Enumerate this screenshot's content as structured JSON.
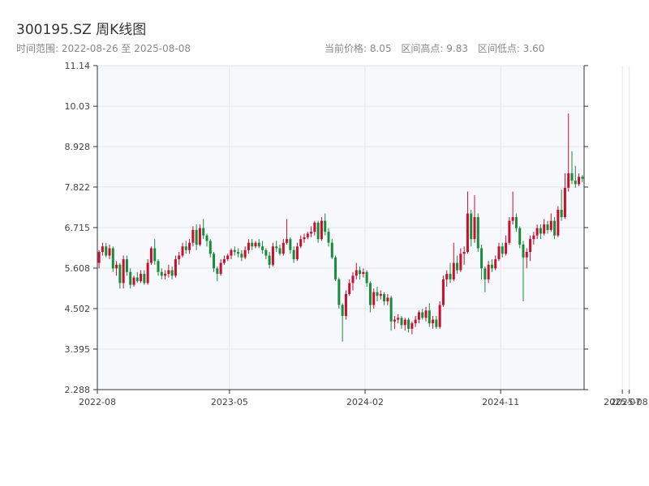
{
  "header": {
    "title": "300195.SZ 周K线图",
    "range_text": "时间范围: 2022-08-26 至 2025-08-08",
    "current_price_text": "当前价格: 8.05",
    "high_text": "区间高点: 9.83",
    "low_text": "区间低点: 3.60"
  },
  "colors": {
    "up": "#c8102e",
    "down": "#1a8a3c",
    "plot_bg": "#f6f8fb",
    "grid": "#e3e6ea",
    "axis": "#333333"
  },
  "chart_data": {
    "type": "candlestick",
    "title": "300195.SZ 周K线图",
    "date_range": [
      "2022-08-26",
      "2025-08-08"
    ],
    "ylim": [
      2.288,
      11.14
    ],
    "y_ticks": [
      "2.288",
      "3.395",
      "4.502",
      "5.608",
      "6.715",
      "7.822",
      "8.928",
      "10.03",
      "11.14"
    ],
    "y_tick_values": [
      2.288,
      3.395,
      4.502,
      5.608,
      6.715,
      7.822,
      8.928,
      10.03,
      11.14
    ],
    "x_ticks": [
      "2022-08",
      "2023-05",
      "2024-02",
      "2024-11",
      "2025-07",
      "2025-08"
    ],
    "x_tick_weeks": [
      0,
      38,
      77,
      116,
      151,
      153
    ],
    "grid": true,
    "current_price": 8.05,
    "period_high": 9.83,
    "period_low": 3.6,
    "candles": [
      [
        5.75,
        6.1,
        5.6,
        6.05
      ],
      [
        6.05,
        6.3,
        5.95,
        6.2
      ],
      [
        6.2,
        6.3,
        5.9,
        5.95
      ],
      [
        5.95,
        6.25,
        5.85,
        6.15
      ],
      [
        6.15,
        6.2,
        5.5,
        5.6
      ],
      [
        5.6,
        5.8,
        5.4,
        5.7
      ],
      [
        5.7,
        5.75,
        5.05,
        5.2
      ],
      [
        5.2,
        5.95,
        5.05,
        5.85
      ],
      [
        5.85,
        5.95,
        5.4,
        5.5
      ],
      [
        5.5,
        5.6,
        5.05,
        5.15
      ],
      [
        5.15,
        5.4,
        5.1,
        5.35
      ],
      [
        5.35,
        5.5,
        5.2,
        5.25
      ],
      [
        5.25,
        5.55,
        5.2,
        5.45
      ],
      [
        5.45,
        5.55,
        5.15,
        5.2
      ],
      [
        5.2,
        5.85,
        5.15,
        5.75
      ],
      [
        5.75,
        6.2,
        5.7,
        6.15
      ],
      [
        6.15,
        6.4,
        5.7,
        5.8
      ],
      [
        5.8,
        5.85,
        5.4,
        5.5
      ],
      [
        5.5,
        5.6,
        5.3,
        5.4
      ],
      [
        5.4,
        5.55,
        5.3,
        5.45
      ],
      [
        5.45,
        5.7,
        5.35,
        5.55
      ],
      [
        5.55,
        5.65,
        5.3,
        5.4
      ],
      [
        5.4,
        5.95,
        5.35,
        5.85
      ],
      [
        5.85,
        6.05,
        5.7,
        5.95
      ],
      [
        5.95,
        6.3,
        5.9,
        6.2
      ],
      [
        6.2,
        6.35,
        6.0,
        6.1
      ],
      [
        6.1,
        6.4,
        6.0,
        6.3
      ],
      [
        6.3,
        6.75,
        6.2,
        6.65
      ],
      [
        6.65,
        6.8,
        6.1,
        6.25
      ],
      [
        6.25,
        6.8,
        6.2,
        6.7
      ],
      [
        6.7,
        6.95,
        6.4,
        6.5
      ],
      [
        6.5,
        6.55,
        6.2,
        6.35
      ],
      [
        6.35,
        6.4,
        5.9,
        6.0
      ],
      [
        6.0,
        6.05,
        5.5,
        5.6
      ],
      [
        5.6,
        5.65,
        5.25,
        5.45
      ],
      [
        5.45,
        5.85,
        5.4,
        5.75
      ],
      [
        5.75,
        5.95,
        5.7,
        5.85
      ],
      [
        5.85,
        6.0,
        5.8,
        5.95
      ],
      [
        5.95,
        6.15,
        5.85,
        6.1
      ],
      [
        6.1,
        6.2,
        5.95,
        6.05
      ],
      [
        6.05,
        6.15,
        5.9,
        6.0
      ],
      [
        6.0,
        6.1,
        5.8,
        5.9
      ],
      [
        5.9,
        6.2,
        5.85,
        6.1
      ],
      [
        6.1,
        6.4,
        6.0,
        6.3
      ],
      [
        6.3,
        6.4,
        6.1,
        6.2
      ],
      [
        6.2,
        6.35,
        6.15,
        6.3
      ],
      [
        6.3,
        6.4,
        6.15,
        6.2
      ],
      [
        6.2,
        6.35,
        6.0,
        6.1
      ],
      [
        6.1,
        6.15,
        5.85,
        5.95
      ],
      [
        5.95,
        6.05,
        5.6,
        5.7
      ],
      [
        5.7,
        6.3,
        5.65,
        6.2
      ],
      [
        6.2,
        6.35,
        6.05,
        6.15
      ],
      [
        6.15,
        6.25,
        5.95,
        6.0
      ],
      [
        6.0,
        6.4,
        5.95,
        6.3
      ],
      [
        6.3,
        6.95,
        6.25,
        6.4
      ],
      [
        6.4,
        6.45,
        6.0,
        6.1
      ],
      [
        6.1,
        6.2,
        5.75,
        5.85
      ],
      [
        5.85,
        6.3,
        5.8,
        6.2
      ],
      [
        6.2,
        6.5,
        6.15,
        6.4
      ],
      [
        6.4,
        6.55,
        6.3,
        6.45
      ],
      [
        6.45,
        6.6,
        6.4,
        6.55
      ],
      [
        6.55,
        6.75,
        6.45,
        6.6
      ],
      [
        6.6,
        6.9,
        6.5,
        6.85
      ],
      [
        6.85,
        6.9,
        6.3,
        6.4
      ],
      [
        6.4,
        7.0,
        6.35,
        6.9
      ],
      [
        6.9,
        7.1,
        6.5,
        6.6
      ],
      [
        6.6,
        6.7,
        6.2,
        6.3
      ],
      [
        6.3,
        6.4,
        5.85,
        5.9
      ],
      [
        5.9,
        5.95,
        5.25,
        5.3
      ],
      [
        5.3,
        5.35,
        4.5,
        4.6
      ],
      [
        4.6,
        4.65,
        3.6,
        4.3
      ],
      [
        4.3,
        5.0,
        4.2,
        4.9
      ],
      [
        4.9,
        5.3,
        4.85,
        5.2
      ],
      [
        5.2,
        5.5,
        5.0,
        5.4
      ],
      [
        5.4,
        5.75,
        5.3,
        5.55
      ],
      [
        5.55,
        5.65,
        5.3,
        5.45
      ],
      [
        5.45,
        5.6,
        5.35,
        5.5
      ],
      [
        5.5,
        5.55,
        5.1,
        5.2
      ],
      [
        5.2,
        5.25,
        4.4,
        4.6
      ],
      [
        4.6,
        5.05,
        4.5,
        4.95
      ],
      [
        4.95,
        5.1,
        4.7,
        4.85
      ],
      [
        4.85,
        5.0,
        4.75,
        4.9
      ],
      [
        4.9,
        4.95,
        4.6,
        4.7
      ],
      [
        4.7,
        4.9,
        4.6,
        4.8
      ],
      [
        4.8,
        4.85,
        3.9,
        4.15
      ],
      [
        4.15,
        4.3,
        3.95,
        4.2
      ],
      [
        4.2,
        4.35,
        4.1,
        4.25
      ],
      [
        4.25,
        4.3,
        3.95,
        4.05
      ],
      [
        4.05,
        4.25,
        3.9,
        4.2
      ],
      [
        4.2,
        4.25,
        3.85,
        3.95
      ],
      [
        3.95,
        4.15,
        3.8,
        4.1
      ],
      [
        4.1,
        4.3,
        4.0,
        4.2
      ],
      [
        4.2,
        4.45,
        4.1,
        4.4
      ],
      [
        4.4,
        4.5,
        4.2,
        4.25
      ],
      [
        4.25,
        4.55,
        4.15,
        4.45
      ],
      [
        4.45,
        4.65,
        4.0,
        4.1
      ],
      [
        4.1,
        4.3,
        3.95,
        4.2
      ],
      [
        4.2,
        4.3,
        3.95,
        4.0
      ],
      [
        4.0,
        4.7,
        3.95,
        4.6
      ],
      [
        4.6,
        5.4,
        4.55,
        5.3
      ],
      [
        5.3,
        5.55,
        5.1,
        5.45
      ],
      [
        5.45,
        5.75,
        5.2,
        5.3
      ],
      [
        5.3,
        6.3,
        5.25,
        5.75
      ],
      [
        5.75,
        5.95,
        5.45,
        5.55
      ],
      [
        5.55,
        6.15,
        5.5,
        6.0
      ],
      [
        6.0,
        6.2,
        5.7,
        6.05
      ],
      [
        6.05,
        7.7,
        6.0,
        7.1
      ],
      [
        7.1,
        7.2,
        6.2,
        6.4
      ],
      [
        6.4,
        7.6,
        6.3,
        7.0
      ],
      [
        7.0,
        7.1,
        6.05,
        6.15
      ],
      [
        6.15,
        6.25,
        5.3,
        5.6
      ],
      [
        5.6,
        5.65,
        4.95,
        5.3
      ],
      [
        5.3,
        5.8,
        5.2,
        5.7
      ],
      [
        5.7,
        5.85,
        5.5,
        5.6
      ],
      [
        5.6,
        5.95,
        5.55,
        5.85
      ],
      [
        5.85,
        6.3,
        5.8,
        6.2
      ],
      [
        6.2,
        6.3,
        5.9,
        6.0
      ],
      [
        6.0,
        6.5,
        5.95,
        6.3
      ],
      [
        6.3,
        7.0,
        6.25,
        6.9
      ],
      [
        6.9,
        7.7,
        6.8,
        7.0
      ],
      [
        7.0,
        7.1,
        6.6,
        6.7
      ],
      [
        6.7,
        6.75,
        6.15,
        6.25
      ],
      [
        6.25,
        6.35,
        4.7,
        5.9
      ],
      [
        5.9,
        6.15,
        5.6,
        6.05
      ],
      [
        6.05,
        6.5,
        5.8,
        6.4
      ],
      [
        6.4,
        6.6,
        6.25,
        6.5
      ],
      [
        6.5,
        6.8,
        6.4,
        6.7
      ],
      [
        6.7,
        6.8,
        6.4,
        6.55
      ],
      [
        6.55,
        6.95,
        6.5,
        6.8
      ],
      [
        6.8,
        6.9,
        6.55,
        6.65
      ],
      [
        6.65,
        7.1,
        6.6,
        6.9
      ],
      [
        6.9,
        7.0,
        6.4,
        6.5
      ],
      [
        6.5,
        7.3,
        6.45,
        7.2
      ],
      [
        7.2,
        7.75,
        6.9,
        7.0
      ],
      [
        7.0,
        8.2,
        6.95,
        7.8
      ],
      [
        7.8,
        9.83,
        7.7,
        8.2
      ],
      [
        8.2,
        8.8,
        7.9,
        8.0
      ],
      [
        8.0,
        8.4,
        7.8,
        7.9
      ],
      [
        7.9,
        8.2,
        7.85,
        8.1
      ],
      [
        8.1,
        8.15,
        7.95,
        8.05
      ]
    ]
  }
}
